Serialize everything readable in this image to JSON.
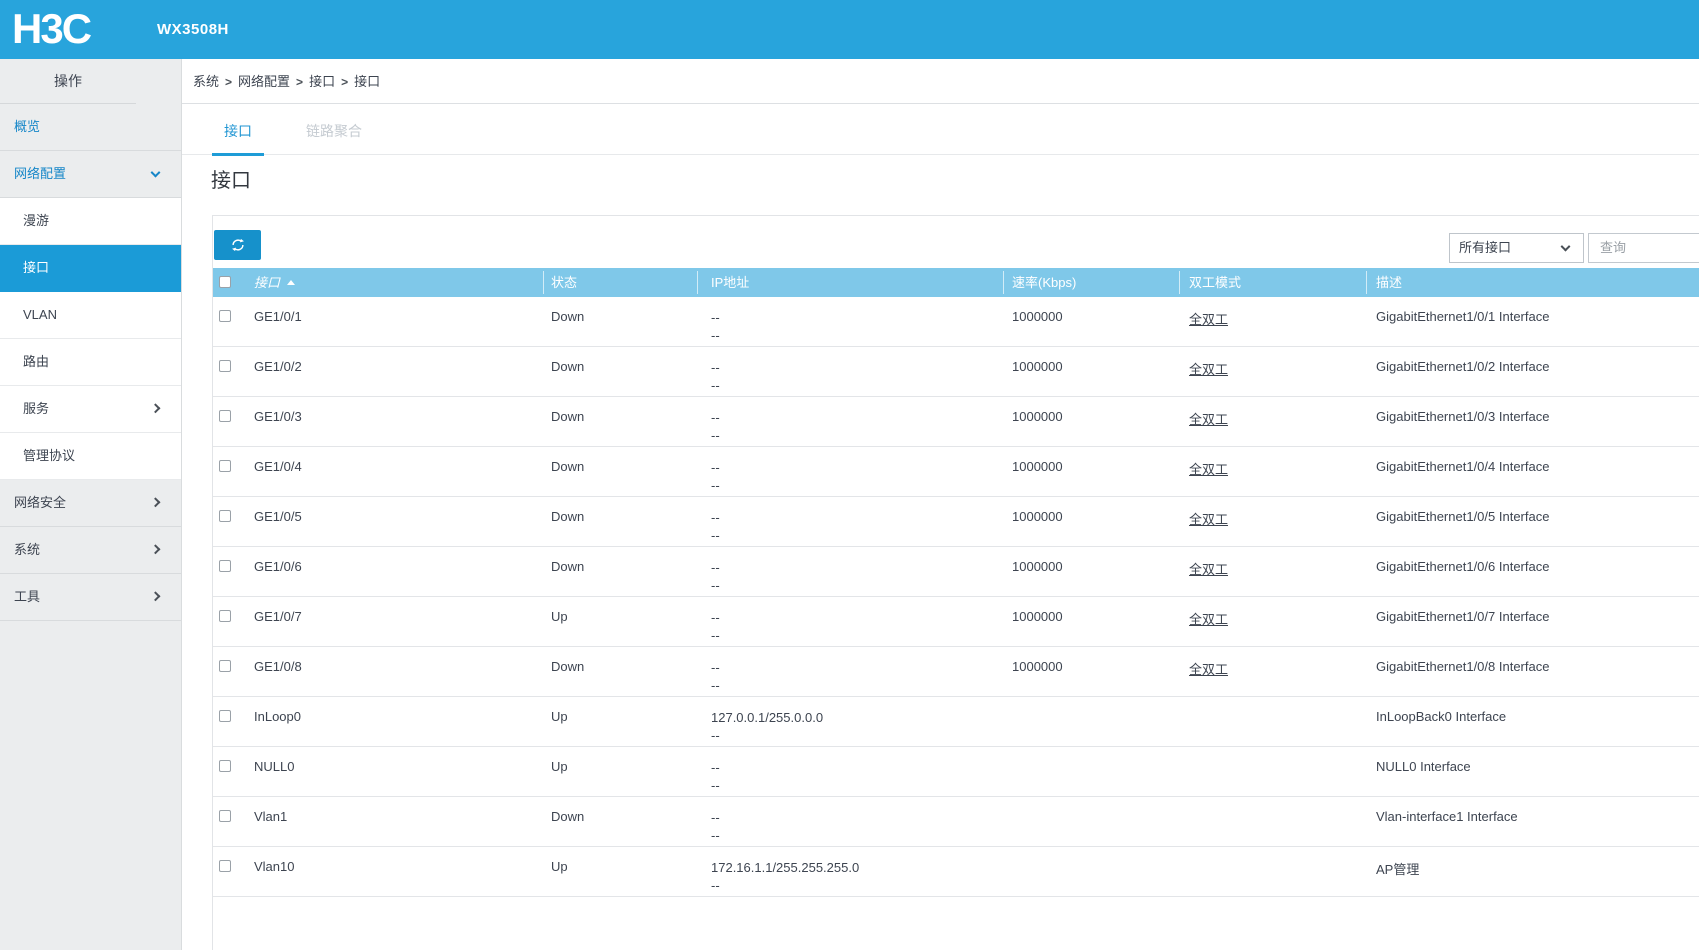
{
  "app": {
    "brand": "H3C",
    "model": "WX3508H"
  },
  "colors": {
    "topbar": "#28a4dc",
    "sidebar_selected": "#1b9bd7",
    "sidebar_link_text": "#1586c8",
    "table_header": "#7fc8e9",
    "refresh_button": "#1691cb",
    "active_tab": "#2196d3"
  },
  "sidebar": {
    "header": "操作",
    "items": [
      {
        "label": "概览",
        "level": "top",
        "blue": true
      },
      {
        "label": "网络配置",
        "level": "top",
        "blue": true,
        "chevron": "down"
      },
      {
        "label": "漫游",
        "level": "sub"
      },
      {
        "label": "接口",
        "level": "sub",
        "selected": true
      },
      {
        "label": "VLAN",
        "level": "sub"
      },
      {
        "label": "路由",
        "level": "sub"
      },
      {
        "label": "服务",
        "level": "sub",
        "chevron": "right"
      },
      {
        "label": "管理协议",
        "level": "sub"
      },
      {
        "label": "网络安全",
        "level": "top",
        "chevron": "right"
      },
      {
        "label": "系统",
        "level": "top",
        "chevron": "right"
      },
      {
        "label": "工具",
        "level": "top",
        "chevron": "right"
      }
    ]
  },
  "breadcrumb": [
    "系统",
    "网络配置",
    "接口",
    "接口"
  ],
  "tabs": [
    {
      "label": "接口",
      "active": true
    },
    {
      "label": "链路聚合",
      "active": false
    }
  ],
  "page": {
    "title": "接口"
  },
  "toolbar": {
    "refresh_icon": "refresh-icon",
    "filter_value": "所有接口",
    "search_placeholder": "查询"
  },
  "table": {
    "columns": [
      {
        "key": "name",
        "label": "接口",
        "sorted": "asc"
      },
      {
        "key": "status",
        "label": "状态"
      },
      {
        "key": "ip",
        "label": "IP地址"
      },
      {
        "key": "speed",
        "label": "速率(Kbps)"
      },
      {
        "key": "duplex",
        "label": "双工模式"
      },
      {
        "key": "desc",
        "label": "描述"
      }
    ],
    "rows": [
      {
        "name": "GE1/0/1",
        "status": "Down",
        "ip": [
          "--",
          "--"
        ],
        "speed": "1000000",
        "duplex": "全双工",
        "desc": "GigabitEthernet1/0/1 Interface"
      },
      {
        "name": "GE1/0/2",
        "status": "Down",
        "ip": [
          "--",
          "--"
        ],
        "speed": "1000000",
        "duplex": "全双工",
        "desc": "GigabitEthernet1/0/2 Interface"
      },
      {
        "name": "GE1/0/3",
        "status": "Down",
        "ip": [
          "--",
          "--"
        ],
        "speed": "1000000",
        "duplex": "全双工",
        "desc": "GigabitEthernet1/0/3 Interface"
      },
      {
        "name": "GE1/0/4",
        "status": "Down",
        "ip": [
          "--",
          "--"
        ],
        "speed": "1000000",
        "duplex": "全双工",
        "desc": "GigabitEthernet1/0/4 Interface"
      },
      {
        "name": "GE1/0/5",
        "status": "Down",
        "ip": [
          "--",
          "--"
        ],
        "speed": "1000000",
        "duplex": "全双工",
        "desc": "GigabitEthernet1/0/5 Interface"
      },
      {
        "name": "GE1/0/6",
        "status": "Down",
        "ip": [
          "--",
          "--"
        ],
        "speed": "1000000",
        "duplex": "全双工",
        "desc": "GigabitEthernet1/0/6 Interface"
      },
      {
        "name": "GE1/0/7",
        "status": "Up",
        "ip": [
          "--",
          "--"
        ],
        "speed": "1000000",
        "duplex": "全双工",
        "desc": "GigabitEthernet1/0/7 Interface"
      },
      {
        "name": "GE1/0/8",
        "status": "Down",
        "ip": [
          "--",
          "--"
        ],
        "speed": "1000000",
        "duplex": "全双工",
        "desc": "GigabitEthernet1/0/8 Interface"
      },
      {
        "name": "InLoop0",
        "status": "Up",
        "ip": [
          "127.0.0.1/255.0.0.0",
          "--"
        ],
        "speed": "",
        "duplex": "",
        "desc": "InLoopBack0 Interface"
      },
      {
        "name": "NULL0",
        "status": "Up",
        "ip": [
          "--",
          "--"
        ],
        "speed": "",
        "duplex": "",
        "desc": "NULL0 Interface"
      },
      {
        "name": "Vlan1",
        "status": "Down",
        "ip": [
          "--",
          "--"
        ],
        "speed": "",
        "duplex": "",
        "desc": "Vlan-interface1 Interface"
      },
      {
        "name": "Vlan10",
        "status": "Up",
        "ip": [
          "172.16.1.1/255.255.255.0",
          "--"
        ],
        "speed": "",
        "duplex": "",
        "desc": "AP管理"
      }
    ]
  }
}
